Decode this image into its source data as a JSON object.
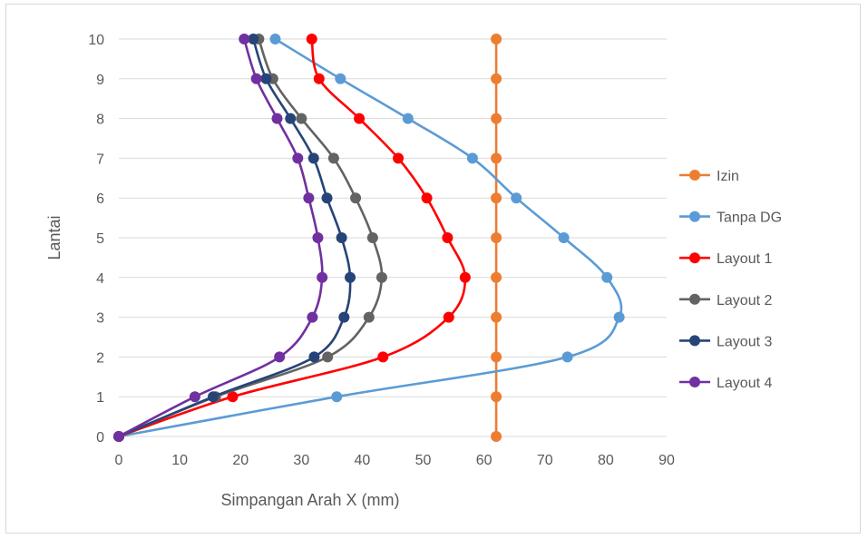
{
  "chart_data": {
    "type": "line",
    "xlabel": "Simpangan Arah X (mm)",
    "ylabel": "Lantai",
    "xlim": [
      0,
      90
    ],
    "ylim": [
      0,
      10
    ],
    "xticks": [
      "0",
      "10",
      "20",
      "30",
      "40",
      "50",
      "60",
      "70",
      "80",
      "90"
    ],
    "yticks": [
      "0",
      "1",
      "2",
      "3",
      "4",
      "5",
      "6",
      "7",
      "8",
      "9",
      "10"
    ],
    "grid": "horizontal",
    "legend_position": "right",
    "series": [
      {
        "name": "Izin",
        "color": "#ED7D31",
        "points": [
          [
            62,
            0
          ],
          [
            62,
            1
          ],
          [
            62,
            2
          ],
          [
            62,
            3
          ],
          [
            62,
            4
          ],
          [
            62,
            5
          ],
          [
            62,
            6
          ],
          [
            62,
            7
          ],
          [
            62,
            8
          ],
          [
            62,
            9
          ],
          [
            62,
            10
          ]
        ]
      },
      {
        "name": "Tanpa DG",
        "color": "#5B9BD5",
        "points": [
          [
            0,
            0
          ],
          [
            35.8,
            1
          ],
          [
            73.7,
            2
          ],
          [
            82.2,
            3
          ],
          [
            80.2,
            4
          ],
          [
            73.1,
            5
          ],
          [
            65.3,
            6
          ],
          [
            58.1,
            7
          ],
          [
            47.5,
            8
          ],
          [
            36.4,
            9
          ],
          [
            25.7,
            10
          ]
        ]
      },
      {
        "name": "Layout 1",
        "color": "#FF0000",
        "points": [
          [
            0,
            0
          ],
          [
            18.7,
            1
          ],
          [
            43.4,
            2
          ],
          [
            54.2,
            3
          ],
          [
            56.9,
            4
          ],
          [
            54.0,
            5
          ],
          [
            50.6,
            6
          ],
          [
            45.9,
            7
          ],
          [
            39.5,
            8
          ],
          [
            32.9,
            9
          ],
          [
            31.7,
            10
          ]
        ]
      },
      {
        "name": "Layout 2",
        "color": "#636363",
        "points": [
          [
            0,
            0
          ],
          [
            15.9,
            1
          ],
          [
            34.3,
            2
          ],
          [
            41.1,
            3
          ],
          [
            43.2,
            4
          ],
          [
            41.7,
            5
          ],
          [
            38.9,
            6
          ],
          [
            35.3,
            7
          ],
          [
            30.0,
            8
          ],
          [
            25.3,
            9
          ],
          [
            23.0,
            10
          ]
        ]
      },
      {
        "name": "Layout 3",
        "color": "#264478",
        "points": [
          [
            0,
            0
          ],
          [
            15.5,
            1
          ],
          [
            32.1,
            2
          ],
          [
            37.0,
            3
          ],
          [
            38.0,
            4
          ],
          [
            36.6,
            5
          ],
          [
            34.2,
            6
          ],
          [
            32.0,
            7
          ],
          [
            28.2,
            8
          ],
          [
            24.2,
            9
          ],
          [
            22.1,
            10
          ]
        ]
      },
      {
        "name": "Layout 4",
        "color": "#7030A0",
        "points": [
          [
            0,
            0
          ],
          [
            12.5,
            1
          ],
          [
            26.4,
            2
          ],
          [
            31.8,
            3
          ],
          [
            33.4,
            4
          ],
          [
            32.7,
            5
          ],
          [
            31.2,
            6
          ],
          [
            29.4,
            7
          ],
          [
            26.0,
            8
          ],
          [
            22.6,
            9
          ],
          [
            20.6,
            10
          ]
        ]
      }
    ]
  }
}
